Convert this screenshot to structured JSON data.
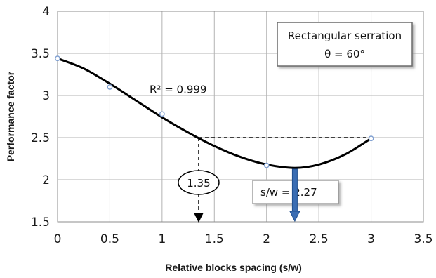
{
  "chart_data": {
    "type": "scatter",
    "xlabel": "Relative blocks spacing (s/w)",
    "ylabel": "Performance factor",
    "xlim": [
      0,
      3.5
    ],
    "ylim": [
      1.5,
      4
    ],
    "xticks": [
      "0",
      "0.5",
      "1",
      "1.5",
      "2",
      "2.5",
      "3",
      "3.5"
    ],
    "yticks": [
      "1.5",
      "2",
      "2.5",
      "3",
      "3.5",
      "4"
    ],
    "grid": true,
    "points": [
      {
        "x": 0,
        "y": 3.44
      },
      {
        "x": 0.5,
        "y": 3.1
      },
      {
        "x": 1,
        "y": 2.78
      },
      {
        "x": 2,
        "y": 2.17
      },
      {
        "x": 3,
        "y": 2.49
      }
    ],
    "trendline": {
      "type": "polynomial",
      "r2_label": "R² = 0.999",
      "curve": [
        {
          "x": 0,
          "y": 3.44
        },
        {
          "x": 0.25,
          "y": 3.32
        },
        {
          "x": 0.5,
          "y": 3.14
        },
        {
          "x": 0.75,
          "y": 2.94
        },
        {
          "x": 1,
          "y": 2.74
        },
        {
          "x": 1.25,
          "y": 2.56
        },
        {
          "x": 1.5,
          "y": 2.4
        },
        {
          "x": 1.75,
          "y": 2.27
        },
        {
          "x": 2,
          "y": 2.18
        },
        {
          "x": 2.27,
          "y": 2.14
        },
        {
          "x": 2.5,
          "y": 2.18
        },
        {
          "x": 2.75,
          "y": 2.3
        },
        {
          "x": 3,
          "y": 2.49
        }
      ]
    },
    "annotations": {
      "box_title": "Rectangular serration",
      "box_angle": "θ = 60°",
      "circle_label": "1.35",
      "circle_x": 1.35,
      "reference_y": 2.5,
      "optimum_label": "s/w = 2.27",
      "optimum_x": 2.27
    }
  },
  "colors": {
    "curve": "#000000",
    "grid": "#b3b3b3",
    "marker": "#7f9fd0",
    "arrow_fill": "#3a6db3",
    "arrow_stroke": "#1f4f8f"
  }
}
